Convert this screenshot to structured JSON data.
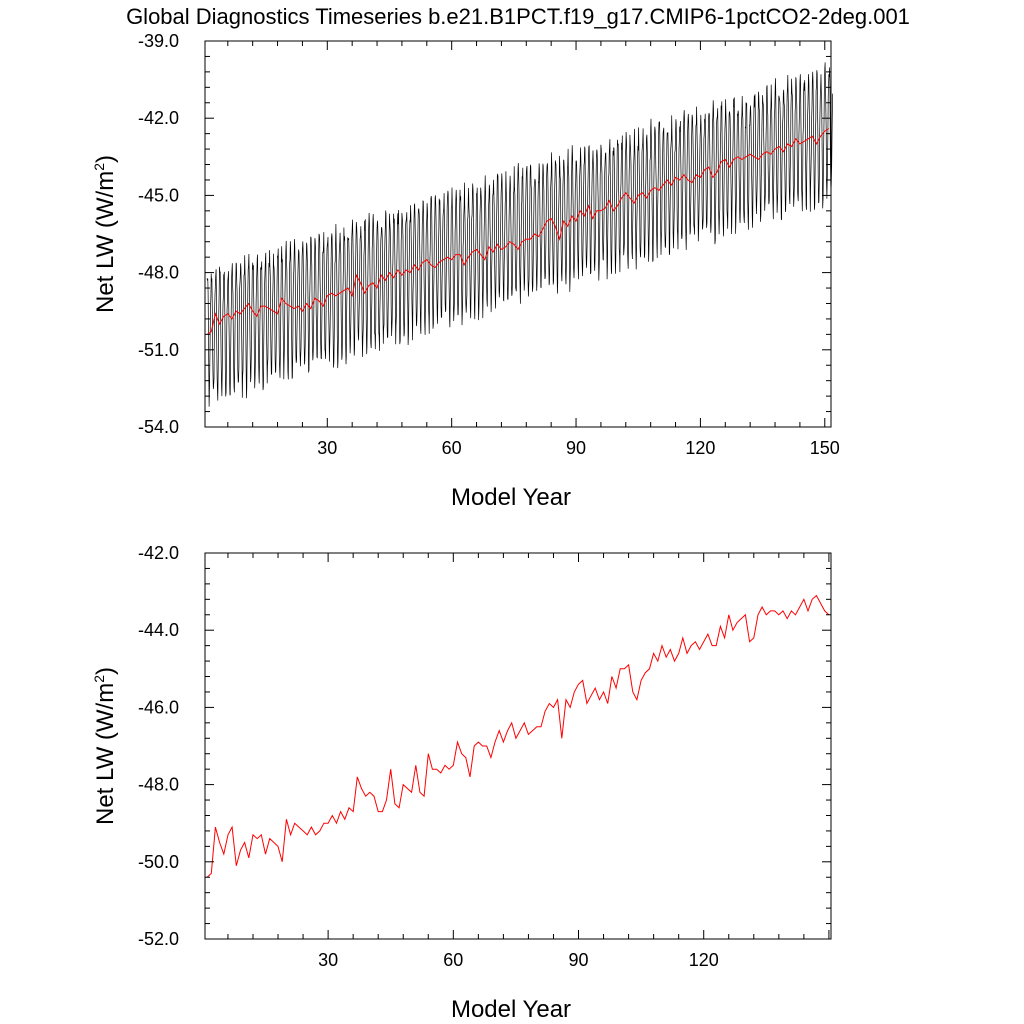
{
  "title": "Global Diagnostics Timeseries b.e21.B1PCT.f19_g17.CMIP6-1pctCO2-2deg.001",
  "colors": {
    "monthly": "#000000",
    "annual": "#ff0000",
    "axis": "#000000",
    "background": "#ffffff"
  },
  "chart_data": [
    {
      "type": "line",
      "ylabel": "Net LW (W/m",
      "ylabel_sup": "2",
      "ylabel_close": ")",
      "xlabel": "Model Year",
      "xlim": [
        0.5,
        151.5
      ],
      "ylim": [
        -54.0,
        -39.0
      ],
      "xticks": [
        30,
        60,
        90,
        120,
        150
      ],
      "xtick_labels": [
        "30",
        "60",
        "90",
        "120",
        "150"
      ],
      "yticks": [
        -54.0,
        -51.0,
        -48.0,
        -45.0,
        -42.0,
        -39.0
      ],
      "ytick_labels": [
        "-54.0",
        "-51.0",
        "-48.0",
        "-45.0",
        "-42.0",
        "-39.0"
      ],
      "series": [
        {
          "name": "monthly",
          "color": "#000000",
          "description": "Monthly global mean net LW, strong seasonal cycle (~4-5 W/m2 amplitude) about the annual mean",
          "trend_start": -50.3,
          "trend_end": -42.3,
          "seasonal_amplitude": 2.4,
          "months": 1812
        },
        {
          "name": "annual",
          "color": "#ff0000",
          "x": [
            1,
            2,
            3,
            4,
            5,
            6,
            7,
            8,
            9,
            10,
            11,
            12,
            13,
            14,
            15,
            16,
            17,
            18,
            19,
            20,
            21,
            22,
            23,
            24,
            25,
            26,
            27,
            28,
            29,
            30,
            31,
            32,
            33,
            34,
            35,
            36,
            37,
            38,
            39,
            40,
            41,
            42,
            43,
            44,
            45,
            46,
            47,
            48,
            49,
            50,
            51,
            52,
            53,
            54,
            55,
            56,
            57,
            58,
            59,
            60,
            61,
            62,
            63,
            64,
            65,
            66,
            67,
            68,
            69,
            70,
            71,
            72,
            73,
            74,
            75,
            76,
            77,
            78,
            79,
            80,
            81,
            82,
            83,
            84,
            85,
            86,
            87,
            88,
            89,
            90,
            91,
            92,
            93,
            94,
            95,
            96,
            97,
            98,
            99,
            100,
            101,
            102,
            103,
            104,
            105,
            106,
            107,
            108,
            109,
            110,
            111,
            112,
            113,
            114,
            115,
            116,
            117,
            118,
            119,
            120,
            121,
            122,
            123,
            124,
            125,
            126,
            127,
            128,
            129,
            130,
            131,
            132,
            133,
            134,
            135,
            136,
            137,
            138,
            139,
            140,
            141,
            142,
            143,
            144,
            145,
            146,
            147,
            148,
            149,
            150,
            151
          ],
          "values": [
            -50.4,
            -50.3,
            -49.6,
            -50.0,
            -49.7,
            -49.6,
            -49.8,
            -49.5,
            -49.6,
            -49.4,
            -49.2,
            -49.5,
            -49.7,
            -49.3,
            -49.3,
            -49.4,
            -49.5,
            -49.6,
            -49.0,
            -49.2,
            -49.3,
            -49.4,
            -49.3,
            -49.5,
            -49.2,
            -49.4,
            -49.0,
            -49.1,
            -49.3,
            -48.9,
            -48.8,
            -48.9,
            -48.8,
            -48.7,
            -48.6,
            -48.9,
            -48.1,
            -48.4,
            -48.8,
            -48.5,
            -48.4,
            -48.6,
            -48.1,
            -48.3,
            -48.0,
            -48.2,
            -47.9,
            -48.1,
            -47.9,
            -48.0,
            -47.7,
            -47.9,
            -47.6,
            -47.5,
            -47.7,
            -47.8,
            -47.6,
            -47.5,
            -47.4,
            -47.5,
            -47.3,
            -47.3,
            -47.7,
            -47.4,
            -47.2,
            -47.1,
            -47.3,
            -47.5,
            -47.0,
            -47.2,
            -46.9,
            -47.1,
            -47.0,
            -46.8,
            -46.9,
            -47.1,
            -46.8,
            -46.7,
            -46.7,
            -46.5,
            -46.6,
            -46.3,
            -46.0,
            -45.9,
            -46.2,
            -46.7,
            -46.0,
            -46.2,
            -45.8,
            -46.0,
            -45.6,
            -45.8,
            -45.4,
            -45.9,
            -45.6,
            -45.6,
            -45.5,
            -45.2,
            -45.6,
            -45.4,
            -45.1,
            -44.9,
            -45.1,
            -45.3,
            -45.0,
            -44.9,
            -45.1,
            -44.8,
            -44.7,
            -44.8,
            -44.6,
            -44.4,
            -44.6,
            -44.3,
            -44.4,
            -44.2,
            -44.4,
            -44.5,
            -44.2,
            -44.3,
            -44.0,
            -43.9,
            -44.3,
            -44.1,
            -43.7,
            -43.6,
            -43.9,
            -43.6,
            -43.5,
            -43.6,
            -43.5,
            -43.4,
            -43.5,
            -43.6,
            -43.4,
            -43.3,
            -43.4,
            -43.2,
            -43.1,
            -43.3,
            -43.0,
            -43.1,
            -42.8,
            -43.0,
            -42.9,
            -42.8,
            -42.7,
            -43.0,
            -42.7,
            -42.5,
            -42.4
          ]
        }
      ]
    },
    {
      "type": "line",
      "ylabel": "Net LW (W/m",
      "ylabel_sup": "2",
      "ylabel_close": ")",
      "xlabel": "Model Year",
      "xlim": [
        0.5,
        150.5
      ],
      "ylim": [
        -52.0,
        -42.0
      ],
      "xticks": [
        30,
        60,
        90,
        120
      ],
      "xtick_labels": [
        "30",
        "60",
        "90",
        "120"
      ],
      "yticks": [
        -52.0,
        -50.0,
        -48.0,
        -46.0,
        -44.0,
        -42.0
      ],
      "ytick_labels": [
        "-52.0",
        "-50.0",
        "-48.0",
        "-46.0",
        "-44.0",
        "-42.0"
      ],
      "series": [
        {
          "name": "annual",
          "color": "#ff0000",
          "x": [
            1,
            2,
            3,
            4,
            5,
            6,
            7,
            8,
            9,
            10,
            11,
            12,
            13,
            14,
            15,
            16,
            17,
            18,
            19,
            20,
            21,
            22,
            23,
            24,
            25,
            26,
            27,
            28,
            29,
            30,
            31,
            32,
            33,
            34,
            35,
            36,
            37,
            38,
            39,
            40,
            41,
            42,
            43,
            44,
            45,
            46,
            47,
            48,
            49,
            50,
            51,
            52,
            53,
            54,
            55,
            56,
            57,
            58,
            59,
            60,
            61,
            62,
            63,
            64,
            65,
            66,
            67,
            68,
            69,
            70,
            71,
            72,
            73,
            74,
            75,
            76,
            77,
            78,
            79,
            80,
            81,
            82,
            83,
            84,
            85,
            86,
            87,
            88,
            89,
            90,
            91,
            92,
            93,
            94,
            95,
            96,
            97,
            98,
            99,
            100,
            101,
            102,
            103,
            104,
            105,
            106,
            107,
            108,
            109,
            110,
            111,
            112,
            113,
            114,
            115,
            116,
            117,
            118,
            119,
            120,
            121,
            122,
            123,
            124,
            125,
            126,
            127,
            128,
            129,
            130,
            131,
            132,
            133,
            134,
            135,
            136,
            137,
            138,
            139,
            140,
            141,
            142,
            143,
            144,
            145,
            146,
            147,
            148,
            149,
            150
          ],
          "values": [
            -50.4,
            -50.3,
            -49.1,
            -49.5,
            -49.8,
            -49.3,
            -49.1,
            -50.1,
            -49.7,
            -49.5,
            -49.9,
            -49.3,
            -49.4,
            -49.3,
            -49.8,
            -49.4,
            -49.5,
            -49.6,
            -50.0,
            -48.9,
            -49.3,
            -49.0,
            -49.1,
            -49.2,
            -49.3,
            -49.1,
            -49.3,
            -49.2,
            -49.0,
            -49.0,
            -48.8,
            -49.0,
            -48.7,
            -48.9,
            -48.6,
            -48.7,
            -47.8,
            -48.1,
            -48.3,
            -48.2,
            -48.3,
            -48.7,
            -48.7,
            -48.4,
            -47.6,
            -48.5,
            -48.6,
            -48.0,
            -48.1,
            -48.2,
            -47.5,
            -48.2,
            -48.3,
            -47.2,
            -47.6,
            -47.6,
            -47.7,
            -47.5,
            -47.6,
            -47.5,
            -46.9,
            -47.2,
            -47.3,
            -47.8,
            -47.0,
            -46.9,
            -47.0,
            -47.0,
            -47.3,
            -46.9,
            -46.6,
            -46.9,
            -46.6,
            -46.4,
            -46.8,
            -46.6,
            -46.4,
            -46.7,
            -46.6,
            -46.5,
            -46.5,
            -46.1,
            -45.9,
            -46.0,
            -45.8,
            -46.8,
            -45.8,
            -46.0,
            -45.6,
            -45.4,
            -45.3,
            -45.9,
            -45.7,
            -45.5,
            -45.8,
            -45.6,
            -45.9,
            -45.2,
            -45.5,
            -45.0,
            -45.0,
            -44.9,
            -45.6,
            -45.8,
            -45.3,
            -45.1,
            -45.0,
            -44.6,
            -44.8,
            -44.4,
            -44.7,
            -44.5,
            -44.8,
            -44.6,
            -44.2,
            -44.6,
            -44.4,
            -44.3,
            -44.5,
            -44.3,
            -44.1,
            -44.4,
            -44.4,
            -43.9,
            -44.2,
            -43.6,
            -44.0,
            -43.8,
            -43.7,
            -43.6,
            -44.3,
            -44.2,
            -43.6,
            -43.4,
            -43.6,
            -43.5,
            -43.5,
            -43.6,
            -43.5,
            -43.7,
            -43.5,
            -43.6,
            -43.4,
            -43.2,
            -43.5,
            -43.2,
            -43.1,
            -43.3,
            -43.5,
            -43.6
          ]
        }
      ]
    }
  ]
}
